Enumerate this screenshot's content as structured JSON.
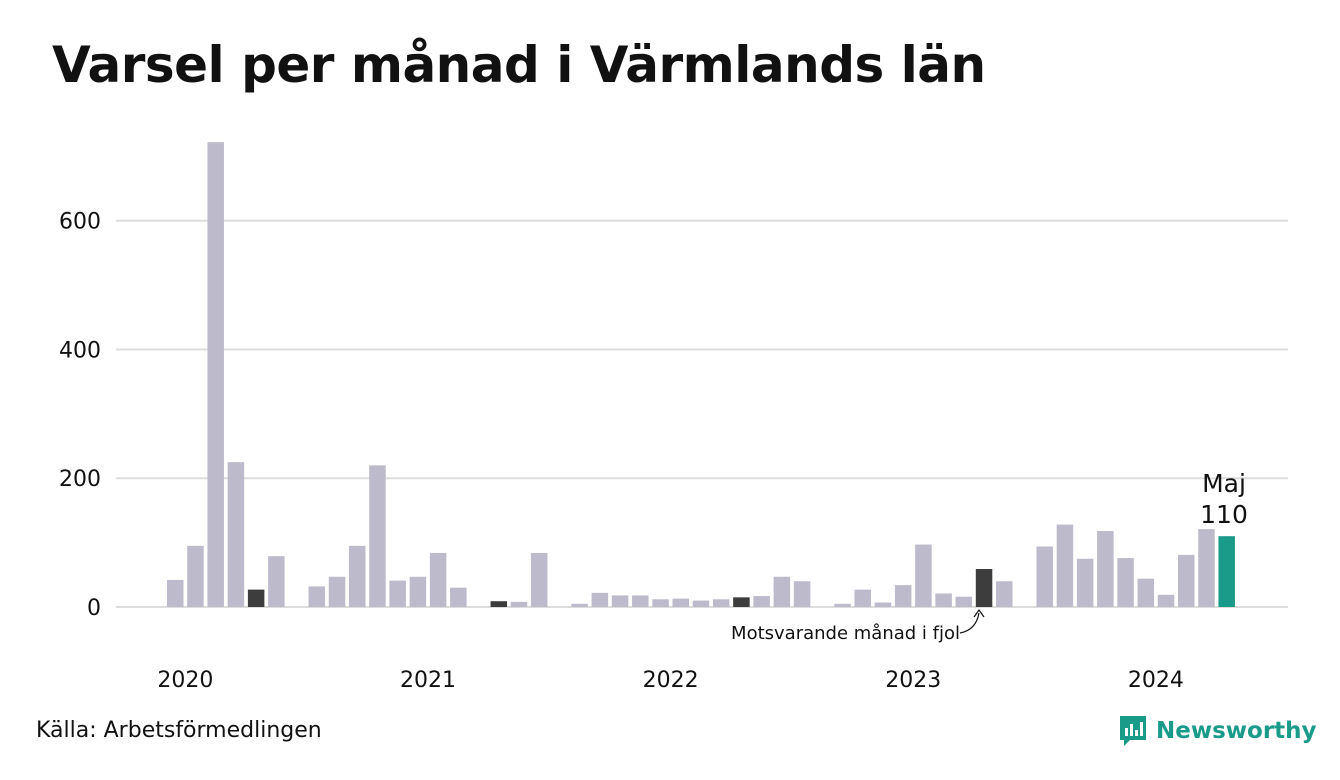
{
  "title": "Varsel per månad i Värmlands län",
  "source": "Källa: Arbetsförmedlingen",
  "brand": "Newsworthy",
  "colors": {
    "bar": "#bdbbcb",
    "same_month_last_years": "#3d3d3d",
    "highlight": "#1a9b89",
    "grid": "#dddddd",
    "brand": "#1a9b89"
  },
  "chart_data": {
    "type": "bar",
    "title": "Varsel per månad i Värmlands län",
    "xlabel": "",
    "ylabel": "",
    "ylim": [
      0,
      730
    ],
    "y_ticks": [
      0,
      200,
      400,
      600
    ],
    "grid": true,
    "x_tick_labels": [
      "2020",
      "2021",
      "2022",
      "2023",
      "2024"
    ],
    "months": [
      "2020-01",
      "2020-02",
      "2020-03",
      "2020-04",
      "2020-05",
      "2020-06",
      "2020-07",
      "2020-08",
      "2020-09",
      "2020-10",
      "2020-11",
      "2020-12",
      "2021-01",
      "2021-02",
      "2021-03",
      "2021-04",
      "2021-05",
      "2021-06",
      "2021-07",
      "2021-08",
      "2021-09",
      "2021-10",
      "2021-11",
      "2021-12",
      "2022-01",
      "2022-02",
      "2022-03",
      "2022-04",
      "2022-05",
      "2022-06",
      "2022-07",
      "2022-08",
      "2022-09",
      "2022-10",
      "2022-11",
      "2022-12",
      "2023-01",
      "2023-02",
      "2023-03",
      "2023-04",
      "2023-05",
      "2023-06",
      "2023-07",
      "2023-08",
      "2023-09",
      "2023-10",
      "2023-11",
      "2023-12",
      "2024-01",
      "2024-02",
      "2024-03",
      "2024-04",
      "2024-05"
    ],
    "values": [
      42,
      95,
      722,
      225,
      27,
      79,
      0,
      32,
      47,
      95,
      220,
      41,
      47,
      84,
      30,
      0,
      9,
      8,
      84,
      0,
      5,
      22,
      18,
      18,
      12,
      13,
      10,
      12,
      15,
      17,
      47,
      40,
      0,
      5,
      27,
      7,
      34,
      97,
      21,
      16,
      59,
      40,
      0,
      94,
      128,
      75,
      118,
      76,
      44,
      19,
      81,
      121,
      110
    ],
    "same_month_prior_years": [
      "2020-05",
      "2021-05",
      "2022-05",
      "2023-05"
    ],
    "highlight": {
      "month": "2024-05",
      "label": "Maj",
      "value_label": "110"
    },
    "annotation": "Motsvarande månad i fjol"
  }
}
